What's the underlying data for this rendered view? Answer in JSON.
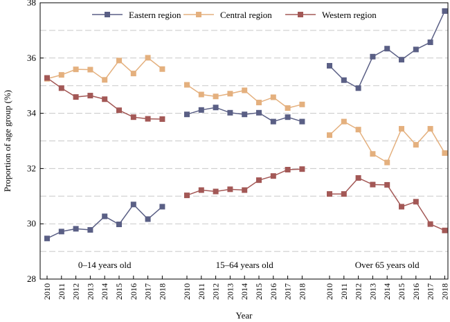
{
  "chart_data": {
    "type": "line",
    "xlabel": "Year",
    "ylabel": "Proportion of age group (%)",
    "ylim": [
      28,
      38
    ],
    "y_ticks": [
      28,
      30,
      32,
      34,
      36,
      38
    ],
    "grid": "horizontal dashed every 1%",
    "legend_position": "top",
    "x": [
      "2010",
      "2011",
      "2012",
      "2013",
      "2014",
      "2015",
      "2016",
      "2017",
      "2018"
    ],
    "groups": [
      {
        "label": "0–14 years old",
        "series": [
          {
            "name": "Eastern region",
            "values": [
              29.47,
              29.72,
              29.82,
              29.78,
              30.27,
              29.98,
              30.7,
              30.17,
              30.62
            ]
          },
          {
            "name": "Central  region",
            "values": [
              35.25,
              35.39,
              35.59,
              35.58,
              35.21,
              35.91,
              35.44,
              36.01,
              35.6
            ]
          },
          {
            "name": "Western region",
            "values": [
              35.28,
              34.91,
              34.59,
              34.64,
              34.51,
              34.11,
              33.86,
              33.8,
              33.79
            ]
          }
        ]
      },
      {
        "label": "15–64 years old",
        "series": [
          {
            "name": "Eastern region",
            "values": [
              33.96,
              34.12,
              34.21,
              34.02,
              33.96,
              34.02,
              33.7,
              33.86,
              33.7
            ]
          },
          {
            "name": "Central  region",
            "values": [
              35.03,
              34.68,
              34.61,
              34.71,
              34.83,
              34.39,
              34.58,
              34.19,
              34.32
            ]
          },
          {
            "name": "Western region",
            "values": [
              31.03,
              31.22,
              31.17,
              31.25,
              31.22,
              31.58,
              31.73,
              31.96,
              31.98
            ]
          }
        ]
      },
      {
        "label": "Over 65 years old",
        "series": [
          {
            "name": "Eastern region",
            "values": [
              35.72,
              35.2,
              34.91,
              36.05,
              36.34,
              35.94,
              36.31,
              36.57,
              37.7
            ]
          },
          {
            "name": "Central  region",
            "values": [
              33.21,
              33.7,
              33.41,
              32.53,
              32.22,
              33.44,
              32.86,
              33.44,
              32.56
            ]
          },
          {
            "name": "Western region",
            "values": [
              31.08,
              31.08,
              31.66,
              31.42,
              31.41,
              30.62,
              30.8,
              29.99,
              29.76
            ]
          }
        ]
      }
    ],
    "legend": [
      {
        "name": "Eastern region",
        "color": "#5a5f85"
      },
      {
        "name": "Central  region",
        "color": "#e4b07e"
      },
      {
        "name": "Western region",
        "color": "#a35856"
      }
    ]
  }
}
